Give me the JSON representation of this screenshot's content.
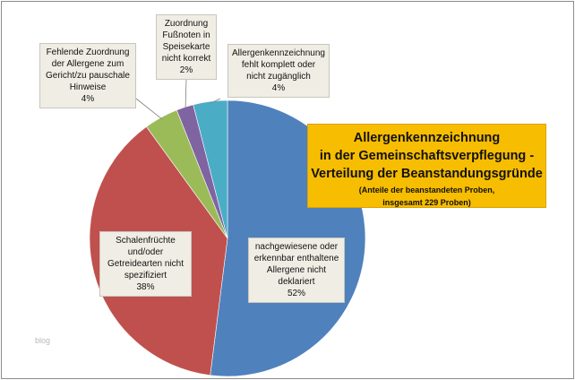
{
  "chart_data": {
    "type": "pie",
    "title_lines": [
      "Allergenkennzeichnung",
      "in der Gemeinschaftsverpflegung -",
      "Verteilung der Beanstandungsgründe"
    ],
    "subtitle_lines": [
      "(Anteile der beanstandeten Proben,",
      "insgesamt 229 Proben)"
    ],
    "slices": [
      {
        "label_lines": [
          "nachgewiesene oder",
          "erkennbar enthaltene",
          "Allergene nicht",
          "deklariert"
        ],
        "value": 52,
        "value_label": "52%",
        "color": "#4f81bd"
      },
      {
        "label_lines": [
          "Schalenfrüchte",
          "und/oder",
          "Getreidearten nicht",
          "spezifiziert"
        ],
        "value": 38,
        "value_label": "38%",
        "color": "#c0504d"
      },
      {
        "label_lines": [
          "Fehlende Zuordnung",
          "der Allergene zum",
          "Gericht/zu pauschale",
          "Hinweise"
        ],
        "value": 4,
        "value_label": "4%",
        "color": "#9bbb59"
      },
      {
        "label_lines": [
          "Zuordnung",
          "Fußnoten in",
          "Speisekarte",
          "nicht korrekt"
        ],
        "value": 2,
        "value_label": "2%",
        "color": "#8064a2"
      },
      {
        "label_lines": [
          "Allergenkennzeichnung",
          "fehlt komplett oder",
          "nicht zugänglich"
        ],
        "value": 4,
        "value_label": "4%",
        "color": "#4bacc6"
      }
    ]
  },
  "watermark": "blog"
}
